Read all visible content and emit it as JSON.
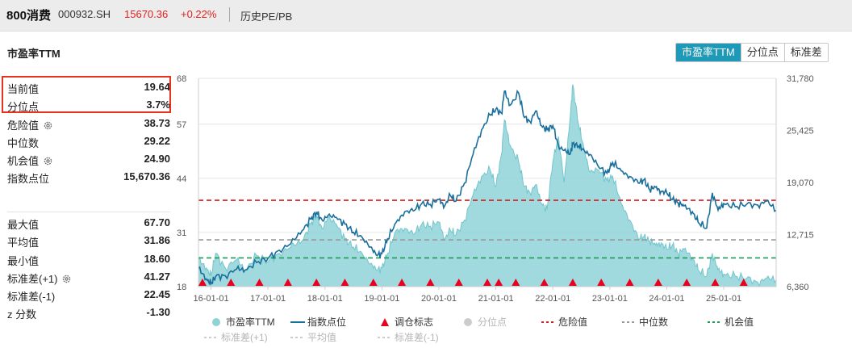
{
  "header": {
    "index_name": "800消费",
    "code": "000932.SH",
    "price": "15670.36",
    "change": "+0.22%",
    "history_link": "历史PE/PB"
  },
  "section_title": "市盈率TTM",
  "buttons": [
    {
      "label": "市盈率TTM",
      "active": true
    },
    {
      "label": "分位点",
      "active": false
    },
    {
      "label": "标准差",
      "active": false
    }
  ],
  "stats_top": [
    {
      "label": "当前值",
      "value": "19.64",
      "gear": false
    },
    {
      "label": "分位点",
      "value": "3.7%",
      "gear": false
    },
    {
      "label": "危险值",
      "value": "38.73",
      "gear": true
    },
    {
      "label": "中位数",
      "value": "29.22",
      "gear": false
    },
    {
      "label": "机会值",
      "value": "24.90",
      "gear": true
    },
    {
      "label": "指数点位",
      "value": "15,670.36",
      "gear": false
    }
  ],
  "stats_bottom": [
    {
      "label": "最大值",
      "value": "67.70",
      "gear": false
    },
    {
      "label": "平均值",
      "value": "31.86",
      "gear": false
    },
    {
      "label": "最小值",
      "value": "18.60",
      "gear": false
    },
    {
      "label": "标准差(+1)",
      "value": "41.27",
      "gear": true
    },
    {
      "label": "标准差(-1)",
      "value": "22.45",
      "gear": false
    },
    {
      "label": "z 分数",
      "value": "-1.30",
      "gear": false
    }
  ],
  "colors": {
    "pe_fill": "#8fd3d8",
    "pe_line": "#72c5cc",
    "index_line": "#1a6f9c",
    "danger": "#d21f1f",
    "median": "#999999",
    "opportunity": "#1e9a55",
    "marker": "#e8001c",
    "accent": "#1e9ab8"
  },
  "chart_data": {
    "type": "area",
    "title": "市盈率TTM",
    "x_tick_labels": [
      "16-01-01",
      "17-01-01",
      "18-01-01",
      "19-01-01",
      "20-01-01",
      "21-01-01",
      "22-01-01",
      "23-01-01",
      "24-01-01",
      "25-01-01"
    ],
    "x_range_years": [
      2015.78,
      2025.92
    ],
    "left_axis": {
      "label": "市盈率TTM",
      "ylim": [
        18,
        68
      ],
      "ticks": [
        18,
        31,
        44,
        57,
        68
      ]
    },
    "right_axis": {
      "label": "指数点位",
      "ylim": [
        6360,
        31780
      ],
      "ticks": [
        "6,360",
        "12,715",
        "19,070",
        "25,425",
        "31,780"
      ]
    },
    "reference_lines": [
      {
        "name": "危险值",
        "value": 38.73,
        "style": "dashed",
        "color": "#d21f1f"
      },
      {
        "name": "中位数",
        "value": 29.22,
        "style": "dashed",
        "color": "#999999"
      },
      {
        "name": "机会值",
        "value": 24.9,
        "style": "dashed",
        "color": "#1e9a55"
      }
    ],
    "series": [
      {
        "name": "市盈率TTM",
        "axis": "left",
        "x": [
          2015.78,
          2015.92,
          2016.0,
          2016.08,
          2016.25,
          2016.45,
          2016.6,
          2016.8,
          2017.0,
          2017.2,
          2017.4,
          2017.6,
          2017.75,
          2017.85,
          2017.95,
          2018.05,
          2018.2,
          2018.35,
          2018.5,
          2018.65,
          2018.8,
          2018.9,
          2019.0,
          2019.1,
          2019.25,
          2019.4,
          2019.55,
          2019.7,
          2019.85,
          2020.0,
          2020.1,
          2020.2,
          2020.3,
          2020.45,
          2020.6,
          2020.75,
          2020.9,
          2021.0,
          2021.1,
          2021.15,
          2021.25,
          2021.4,
          2021.5,
          2021.6,
          2021.7,
          2021.8,
          2021.9,
          2022.0,
          2022.1,
          2022.2,
          2022.3,
          2022.35,
          2022.45,
          2022.55,
          2022.65,
          2022.8,
          2022.95,
          2023.05,
          2023.2,
          2023.35,
          2023.5,
          2023.6,
          2023.7,
          2023.8,
          2023.9,
          2024.0,
          2024.1,
          2024.2,
          2024.3,
          2024.45,
          2024.55,
          2024.7,
          2024.8,
          2024.9,
          2025.0,
          2025.2,
          2025.4,
          2025.6,
          2025.75,
          2025.92
        ],
        "values": [
          24.5,
          22.5,
          20.5,
          26.0,
          22.5,
          24.5,
          22.0,
          25.5,
          24.0,
          26.0,
          27.5,
          29.0,
          33.0,
          35.0,
          32.0,
          34.5,
          33.0,
          29.5,
          27.5,
          26.0,
          23.5,
          22.0,
          22.5,
          26.0,
          31.5,
          32.0,
          30.5,
          33.0,
          32.5,
          33.5,
          29.5,
          31.5,
          30.5,
          34.0,
          40.0,
          44.5,
          46.0,
          42.0,
          50.0,
          58.0,
          52.0,
          48.0,
          42.0,
          40.5,
          42.5,
          38.0,
          36.5,
          48.0,
          54.0,
          43.0,
          58.0,
          66.5,
          57.0,
          51.0,
          45.5,
          46.0,
          43.5,
          44.5,
          38.0,
          34.0,
          29.5,
          30.0,
          29.0,
          28.0,
          28.5,
          27.0,
          28.0,
          26.0,
          27.0,
          25.0,
          22.0,
          20.5,
          26.0,
          22.0,
          21.0,
          20.5,
          20.0,
          19.0,
          20.0,
          19.64
        ]
      },
      {
        "name": "指数点位",
        "axis": "right",
        "x": [
          2015.78,
          2015.92,
          2016.0,
          2016.08,
          2016.25,
          2016.45,
          2016.6,
          2016.8,
          2017.0,
          2017.2,
          2017.4,
          2017.6,
          2017.75,
          2017.85,
          2017.95,
          2018.05,
          2018.2,
          2018.35,
          2018.5,
          2018.65,
          2018.8,
          2018.9,
          2019.0,
          2019.1,
          2019.25,
          2019.4,
          2019.55,
          2019.7,
          2019.85,
          2020.0,
          2020.1,
          2020.2,
          2020.3,
          2020.45,
          2020.6,
          2020.75,
          2020.9,
          2021.0,
          2021.1,
          2021.15,
          2021.25,
          2021.4,
          2021.5,
          2021.6,
          2021.7,
          2021.8,
          2021.9,
          2022.0,
          2022.1,
          2022.2,
          2022.3,
          2022.35,
          2022.45,
          2022.55,
          2022.65,
          2022.8,
          2022.95,
          2023.05,
          2023.2,
          2023.35,
          2023.5,
          2023.6,
          2023.7,
          2023.8,
          2023.9,
          2024.0,
          2024.1,
          2024.2,
          2024.3,
          2024.45,
          2024.55,
          2024.7,
          2024.8,
          2024.9,
          2025.0,
          2025.2,
          2025.4,
          2025.6,
          2025.75,
          2025.92
        ],
        "values": [
          8600,
          7300,
          6700,
          7600,
          7700,
          8500,
          8400,
          9300,
          9800,
          10800,
          11600,
          13200,
          14600,
          15400,
          14500,
          15000,
          14800,
          14000,
          13000,
          12400,
          11200,
          10200,
          10400,
          12200,
          14200,
          15500,
          15600,
          16500,
          16400,
          17000,
          16200,
          17500,
          16800,
          19000,
          22500,
          25500,
          27300,
          28000,
          27500,
          30200,
          28500,
          30000,
          27000,
          26500,
          27800,
          26000,
          25500,
          26000,
          23500,
          23000,
          22500,
          23800,
          23500,
          23000,
          22500,
          21000,
          20200,
          21500,
          20500,
          19800,
          19000,
          19400,
          18200,
          18500,
          18000,
          17800,
          17000,
          16600,
          16200,
          15500,
          14200,
          13500,
          17800,
          15700,
          16500,
          16100,
          16400,
          16300,
          16800,
          15670
        ]
      }
    ],
    "rebalance_markers_x": [
      2015.85,
      2016.35,
      2016.85,
      2017.35,
      2017.85,
      2018.35,
      2018.85,
      2019.35,
      2019.85,
      2020.35,
      2020.85,
      2021.05,
      2021.35,
      2021.85,
      2022.35,
      2022.85,
      2023.35,
      2023.85,
      2024.35,
      2024.85,
      2025.35
    ],
    "legend": [
      {
        "name": "市盈率TTM",
        "symbol": "dot",
        "color": "#8fd3d8",
        "enabled": true
      },
      {
        "name": "指数点位",
        "symbol": "line",
        "color": "#1a6f9c",
        "enabled": true
      },
      {
        "name": "调仓标志",
        "symbol": "triangle",
        "color": "#e8001c",
        "enabled": true
      },
      {
        "name": "分位点",
        "symbol": "dot",
        "color": "#cccccc",
        "enabled": false
      },
      {
        "name": "危险值",
        "symbol": "dash",
        "color": "#d21f1f",
        "enabled": true
      },
      {
        "name": "中位数",
        "symbol": "dash",
        "color": "#999999",
        "enabled": true
      },
      {
        "name": "机会值",
        "symbol": "dash",
        "color": "#1e9a55",
        "enabled": true
      },
      {
        "name": "标准差(+1)",
        "symbol": "dash",
        "color": "#cccccc",
        "enabled": false
      },
      {
        "name": "平均值",
        "symbol": "dash",
        "color": "#cccccc",
        "enabled": false
      },
      {
        "name": "标准差(-1)",
        "symbol": "dash",
        "color": "#cccccc",
        "enabled": false
      }
    ]
  }
}
